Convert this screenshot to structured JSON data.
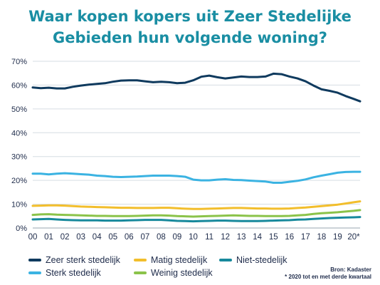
{
  "title_lines": [
    "Waar kopen kopers uit Zeer Stedelijke",
    "Gebieden hun volgende woning?"
  ],
  "source": {
    "line1": "Bron: Kadaster",
    "line2": "* 2020 tot en met derde kwartaal"
  },
  "colors": {
    "title": "#1a8ea3",
    "axis_text": "#1e2b4a",
    "grid": "#d6dde3"
  },
  "chart_data": {
    "type": "line",
    "title": "Waar kopen kopers uit Zeer Stedelijke Gebieden hun volgende woning?",
    "xlabel": "",
    "ylabel": "",
    "x_ticks": [
      "00",
      "01",
      "02",
      "03",
      "04",
      "05",
      "06",
      "07",
      "08",
      "09",
      "10",
      "11",
      "12",
      "13",
      "14",
      "15",
      "16",
      "17",
      "18",
      "19",
      "20*"
    ],
    "x_range": [
      0,
      20.4
    ],
    "y_ticks": [
      "0%",
      "10%",
      "20%",
      "30%",
      "40%",
      "50%",
      "60%",
      "70%"
    ],
    "y_range": [
      0,
      70
    ],
    "grid": "horizontal",
    "legend_placement": "bottom",
    "series": [
      {
        "name": "Zeer sterk stedelijk",
        "color": "#0f3a5e",
        "x": [
          0,
          0.5,
          1,
          1.5,
          2,
          2.5,
          3,
          3.5,
          4,
          4.5,
          5,
          5.5,
          6,
          6.5,
          7,
          7.5,
          8,
          8.5,
          9,
          9.5,
          10,
          10.5,
          11,
          11.5,
          12,
          12.5,
          13,
          13.5,
          14,
          14.5,
          15,
          15.5,
          16,
          16.5,
          17,
          17.5,
          18,
          18.5,
          19,
          19.5,
          20,
          20.4
        ],
        "y": [
          59,
          58.7,
          58.9,
          58.6,
          58.6,
          59.3,
          59.8,
          60.2,
          60.5,
          60.8,
          61.4,
          61.9,
          62,
          62,
          61.6,
          61.2,
          61.4,
          61.2,
          60.8,
          61,
          62,
          63.5,
          64,
          63.3,
          62.8,
          63.2,
          63.6,
          63.4,
          63.4,
          63.6,
          64.8,
          64.6,
          63.6,
          62.8,
          61.6,
          59.8,
          58.2,
          57.6,
          56.8,
          55.4,
          54.2,
          53.2
        ]
      },
      {
        "name": "Sterk stedelijk",
        "color": "#3bb3e2",
        "x": [
          0,
          0.5,
          1,
          1.5,
          2,
          2.5,
          3,
          3.5,
          4,
          4.5,
          5,
          5.5,
          6,
          6.5,
          7,
          7.5,
          8,
          8.5,
          9,
          9.5,
          10,
          10.5,
          11,
          11.5,
          12,
          12.5,
          13,
          13.5,
          14,
          14.5,
          15,
          15.5,
          16,
          16.5,
          17,
          17.5,
          18,
          18.5,
          19,
          19.5,
          20,
          20.4
        ],
        "y": [
          22.8,
          22.8,
          22.5,
          22.8,
          23,
          22.8,
          22.6,
          22.4,
          22,
          21.8,
          21.5,
          21.4,
          21.5,
          21.6,
          21.8,
          22,
          22,
          22,
          21.8,
          21.5,
          20.3,
          20,
          20,
          20.3,
          20.5,
          20.2,
          20.1,
          19.9,
          19.7,
          19.5,
          19,
          19,
          19.4,
          19.8,
          20.4,
          21.3,
          22,
          22.6,
          23.2,
          23.5,
          23.6,
          23.6
        ]
      },
      {
        "name": "Matig stedelijk",
        "color": "#f2be2c",
        "x": [
          0,
          0.5,
          1,
          1.5,
          2,
          2.5,
          3,
          3.5,
          4,
          4.5,
          5,
          5.5,
          6,
          6.5,
          7,
          7.5,
          8,
          8.5,
          9,
          9.5,
          10,
          10.5,
          11,
          11.5,
          12,
          12.5,
          13,
          13.5,
          14,
          14.5,
          15,
          15.5,
          16,
          16.5,
          17,
          17.5,
          18,
          18.5,
          19,
          19.5,
          20,
          20.4
        ],
        "y": [
          9.3,
          9.4,
          9.5,
          9.5,
          9.4,
          9.2,
          9,
          8.9,
          8.8,
          8.7,
          8.6,
          8.5,
          8.5,
          8.4,
          8.4,
          8.4,
          8.5,
          8.5,
          8.3,
          8.1,
          8,
          8,
          8.1,
          8.2,
          8.3,
          8.4,
          8.4,
          8.3,
          8.2,
          8.2,
          8.1,
          8.1,
          8.2,
          8.4,
          8.6,
          8.9,
          9.2,
          9.5,
          9.8,
          10.3,
          10.8,
          11.2
        ]
      },
      {
        "name": "Weinig stedelijk",
        "color": "#8bc34a",
        "x": [
          0,
          0.5,
          1,
          1.5,
          2,
          2.5,
          3,
          3.5,
          4,
          4.5,
          5,
          5.5,
          6,
          6.5,
          7,
          7.5,
          8,
          8.5,
          9,
          9.5,
          10,
          10.5,
          11,
          11.5,
          12,
          12.5,
          13,
          13.5,
          14,
          14.5,
          15,
          15.5,
          16,
          16.5,
          17,
          17.5,
          18,
          18.5,
          19,
          19.5,
          20,
          20.4
        ],
        "y": [
          5.5,
          5.7,
          5.8,
          5.6,
          5.5,
          5.4,
          5.3,
          5.2,
          5.1,
          5.1,
          5,
          5,
          5,
          5.1,
          5.2,
          5.3,
          5.3,
          5.2,
          5,
          4.9,
          4.8,
          4.9,
          5,
          5.1,
          5.2,
          5.3,
          5.2,
          5.1,
          5.1,
          5,
          5,
          5,
          5.1,
          5.3,
          5.5,
          5.9,
          6.2,
          6.4,
          6.6,
          6.9,
          7.2,
          7.5
        ]
      },
      {
        "name": "Niet-stedelijk",
        "color": "#17899c",
        "x": [
          0,
          0.5,
          1,
          1.5,
          2,
          2.5,
          3,
          3.5,
          4,
          4.5,
          5,
          5.5,
          6,
          6.5,
          7,
          7.5,
          8,
          8.5,
          9,
          9.5,
          10,
          10.5,
          11,
          11.5,
          12,
          12.5,
          13,
          13.5,
          14,
          14.5,
          15,
          15.5,
          16,
          16.5,
          17,
          17.5,
          18,
          18.5,
          19,
          19.5,
          20,
          20.4
        ],
        "y": [
          3.6,
          3.7,
          3.8,
          3.6,
          3.4,
          3.3,
          3.2,
          3.2,
          3.2,
          3.1,
          3.1,
          3.1,
          3.2,
          3.3,
          3.4,
          3.4,
          3.4,
          3.2,
          3,
          2.9,
          2.8,
          2.9,
          3,
          3.1,
          3.1,
          3,
          2.9,
          2.9,
          2.9,
          3,
          3.1,
          3.2,
          3.3,
          3.5,
          3.6,
          3.8,
          4,
          4.2,
          4.3,
          4.4,
          4.5,
          4.6
        ]
      }
    ]
  }
}
